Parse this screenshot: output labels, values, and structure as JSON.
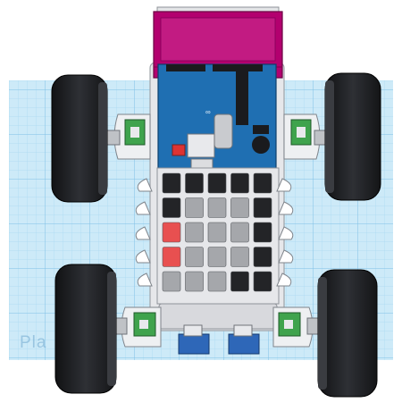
{
  "workplane": {
    "label": "Pla"
  },
  "keypad": {
    "rows": [
      [
        "dark",
        "dark",
        "dark",
        "dark",
        "dark"
      ],
      [
        "dark",
        "gray",
        "gray",
        "gray",
        "dark"
      ],
      [
        "red",
        "gray",
        "gray",
        "gray",
        "dark"
      ],
      [
        "red",
        "gray",
        "gray",
        "gray",
        "dark"
      ],
      [
        "gray",
        "gray",
        "gray",
        "dark",
        "dark"
      ]
    ]
  },
  "colors": {
    "grid_bg": "#cdeaf8",
    "grid_line": "#8ec9ea",
    "lcd": "#b3006f",
    "arduino": "#1f6fb2",
    "tire": "#1c1d20",
    "chassis": "#e6e7ea",
    "motor_green": "#3fa34d",
    "servo_blue": "#2e67b8",
    "key_dark": "#232427",
    "key_gray": "#a5a7ab",
    "key_red": "#e85050"
  }
}
